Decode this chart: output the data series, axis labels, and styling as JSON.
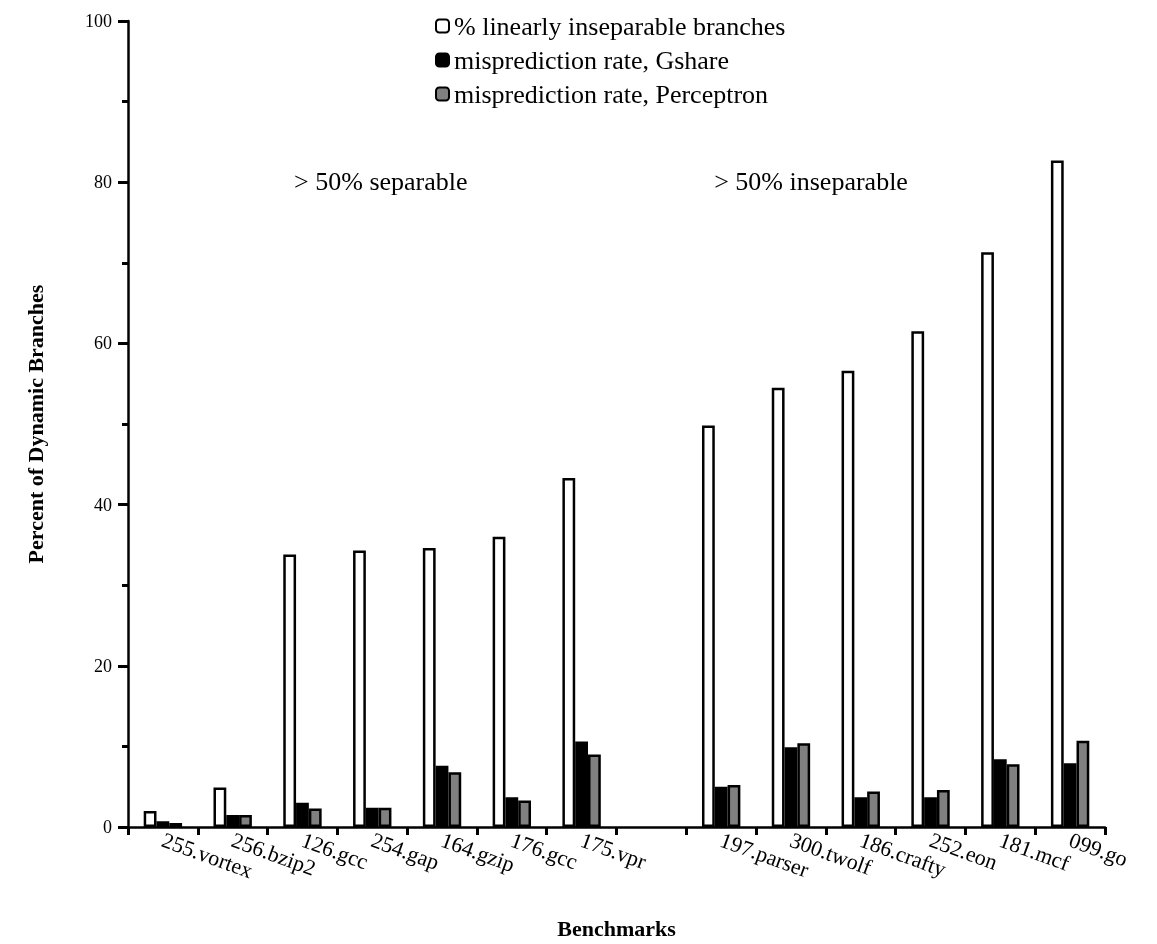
{
  "chart_data": {
    "type": "bar",
    "xlabel": "Benchmarks",
    "ylabel": "Percent of Dynamic Branches",
    "categories": [
      "255.vortex",
      "256.bzip2",
      "126.gcc",
      "254.gap",
      "164.gzip",
      "176.gcc",
      "175.vpr",
      null,
      "197.parser",
      "300.twolf",
      "186.crafty",
      "252.eon",
      "181.mcf",
      "099.go"
    ],
    "series": [
      {
        "name": "% linearly inseparable branches",
        "color": "#ffffff",
        "values": [
          2.0,
          4.9,
          33.8,
          34.3,
          34.6,
          36.0,
          43.3,
          null,
          49.8,
          54.5,
          56.6,
          61.5,
          71.3,
          82.7
        ]
      },
      {
        "name": "misprediction rate, Gshare",
        "color": "#000000",
        "values": [
          0.7,
          1.5,
          3.0,
          2.4,
          7.6,
          3.7,
          10.6,
          null,
          5.0,
          9.9,
          3.7,
          3.7,
          8.4,
          7.9
        ]
      },
      {
        "name": "misprediction rate, Perceptron",
        "color": "#808080",
        "values": [
          0.5,
          1.5,
          2.3,
          2.4,
          6.8,
          3.3,
          9.0,
          null,
          5.2,
          10.4,
          4.4,
          4.6,
          7.8,
          10.7
        ]
      }
    ],
    "ylim": [
      0,
      100
    ],
    "yticks": [
      0,
      20,
      40,
      60,
      80,
      100
    ],
    "grid": false,
    "legend": "top",
    "annotations": [
      "> 50% separable",
      "> 50% inseparable"
    ]
  }
}
